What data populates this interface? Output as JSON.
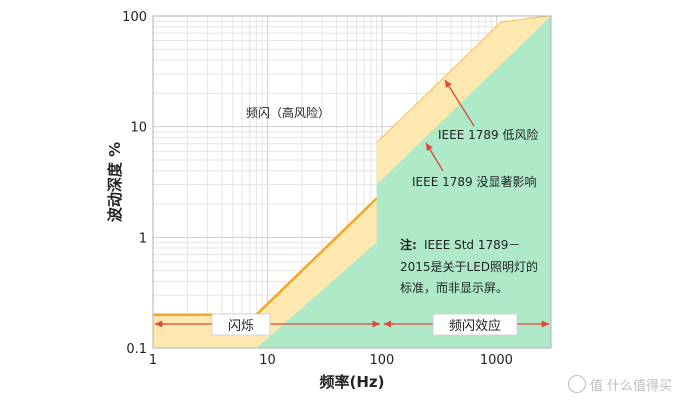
{
  "chart_data": {
    "type": "area",
    "xscale": "log",
    "yscale": "log",
    "xlim": [
      1,
      3000
    ],
    "ylim": [
      0.1,
      100
    ],
    "grid": true,
    "xlabel": "频率(Hz)",
    "ylabel": "波动深度 %",
    "xticks": [
      {
        "value": 1,
        "label": "1"
      },
      {
        "value": 10,
        "label": "10"
      },
      {
        "value": 100,
        "label": "100"
      },
      {
        "value": 1000,
        "label": "1000"
      }
    ],
    "yticks": [
      {
        "value": 0.1,
        "label": "0.1"
      },
      {
        "value": 1,
        "label": "1"
      },
      {
        "value": 10,
        "label": "10"
      },
      {
        "value": 100,
        "label": "100"
      }
    ],
    "series": [
      {
        "name": "IEEE 1789 低风险",
        "color": "#f5a623",
        "fill": "#fde9b0",
        "points": [
          [
            1,
            0.2
          ],
          [
            8,
            0.2
          ],
          [
            90,
            2.25
          ],
          [
            90,
            7.2
          ],
          [
            1100,
            88
          ],
          [
            2800,
            100
          ],
          [
            3000,
            100
          ]
        ]
      },
      {
        "name": "IEEE 1789 没显著影响",
        "color": "#7dd6a2",
        "fill": "#aee9c8",
        "points": [
          [
            8,
            0.1
          ],
          [
            90,
            0.9
          ],
          [
            90,
            3.0
          ],
          [
            3000,
            100
          ]
        ]
      }
    ],
    "annotations": {
      "high_risk": "频闪（高风险）",
      "low_risk": "IEEE 1789 低风险",
      "no_effect": "IEEE 1789 没显著影响",
      "note_bold": "注:",
      "note_lines": [
        "IEEE Std 1789－",
        "2015是关于LED照明灯的",
        "标准，而非显示屏。"
      ],
      "flicker": "闪烁",
      "stroboscopic": "频闪效应"
    }
  },
  "watermark": "值 什么值得买"
}
